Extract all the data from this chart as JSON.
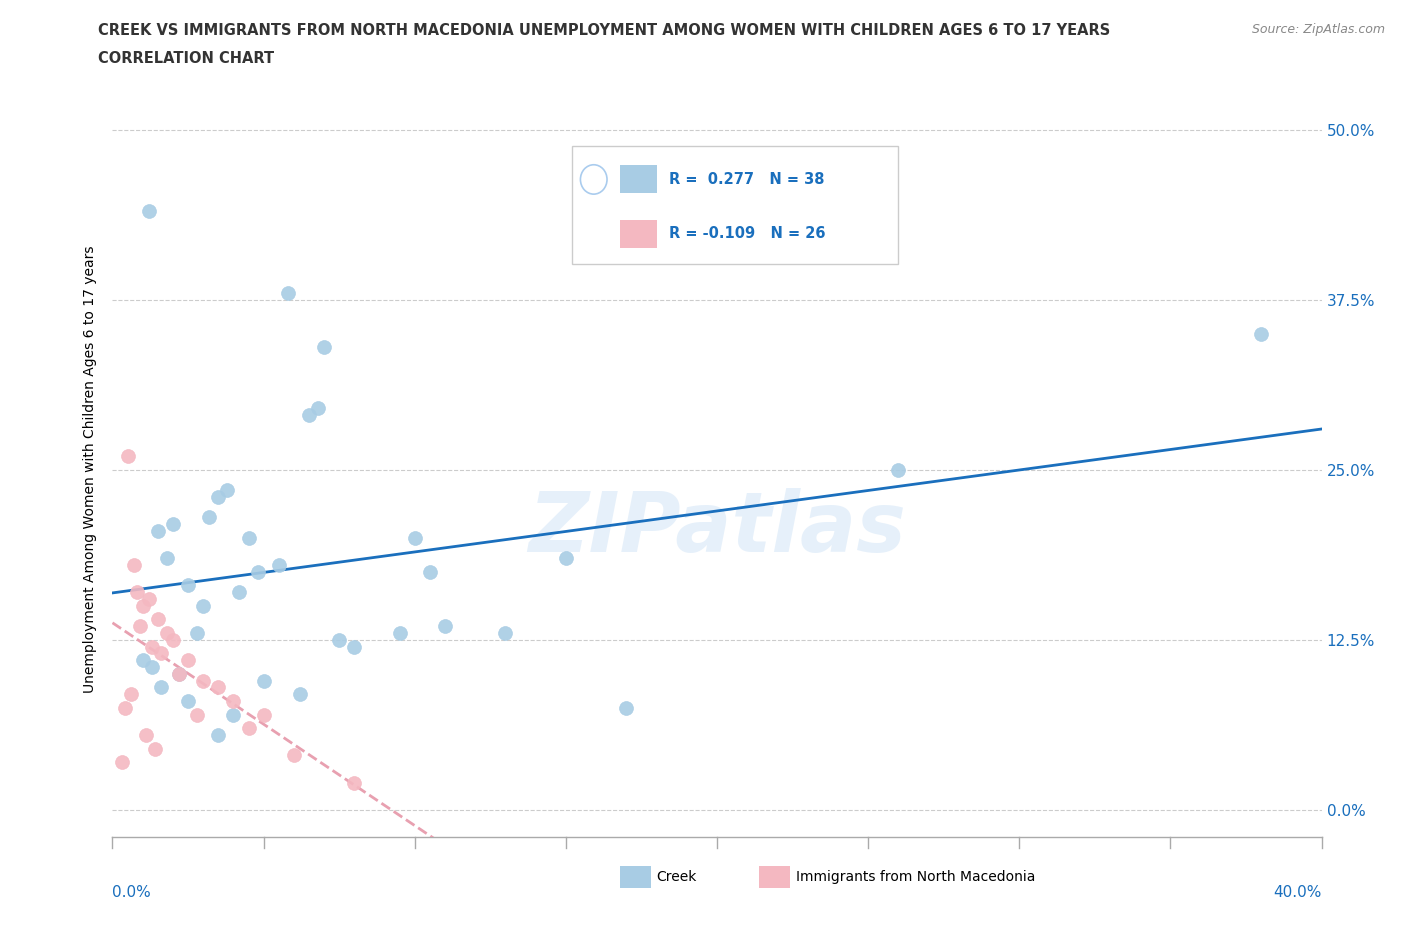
{
  "title_line1": "CREEK VS IMMIGRANTS FROM NORTH MACEDONIA UNEMPLOYMENT AMONG WOMEN WITH CHILDREN AGES 6 TO 17 YEARS",
  "title_line2": "CORRELATION CHART",
  "source": "Source: ZipAtlas.com",
  "ylabel": "Unemployment Among Women with Children Ages 6 to 17 years",
  "ytick_values": [
    0.0,
    12.5,
    25.0,
    37.5,
    50.0
  ],
  "xrange": [
    0.0,
    40.0
  ],
  "yrange": [
    -2.0,
    52.0
  ],
  "creek_color": "#a8cce4",
  "immigrants_color": "#f4b8c1",
  "trend_creek_color": "#1a6fbd",
  "trend_immigrants_color": "#e8a0b0",
  "legend_r_creek": "0.277",
  "legend_n_creek": "38",
  "legend_r_immigrants": "-0.109",
  "legend_n_immigrants": "26",
  "watermark": "ZIPatlas",
  "creek_x": [
    1.2,
    5.8,
    7.0,
    6.8,
    6.5,
    3.5,
    3.8,
    3.2,
    2.0,
    1.5,
    1.8,
    2.5,
    4.5,
    4.8,
    5.5,
    10.0,
    10.5,
    11.0,
    9.5,
    15.0,
    13.0,
    17.0,
    26.0,
    38.0,
    2.8,
    3.0,
    4.2,
    1.0,
    1.3,
    1.6,
    2.2,
    7.5,
    8.0,
    6.2,
    5.0,
    4.0,
    3.5,
    2.5
  ],
  "creek_y": [
    44.0,
    38.0,
    34.0,
    29.5,
    29.0,
    23.0,
    23.5,
    21.5,
    21.0,
    20.5,
    18.5,
    16.5,
    20.0,
    17.5,
    18.0,
    20.0,
    17.5,
    13.5,
    13.0,
    18.5,
    13.0,
    7.5,
    25.0,
    35.0,
    13.0,
    15.0,
    16.0,
    11.0,
    10.5,
    9.0,
    10.0,
    12.5,
    12.0,
    8.5,
    9.5,
    7.0,
    5.5,
    8.0
  ],
  "immigrants_x": [
    0.5,
    0.7,
    0.8,
    1.0,
    1.2,
    1.5,
    0.9,
    1.8,
    2.0,
    2.5,
    3.0,
    4.0,
    5.0,
    6.0,
    8.0,
    1.3,
    1.6,
    2.2,
    3.5,
    0.6,
    0.4,
    2.8,
    4.5,
    1.1,
    1.4,
    0.3
  ],
  "immigrants_y": [
    26.0,
    18.0,
    16.0,
    15.0,
    15.5,
    14.0,
    13.5,
    13.0,
    12.5,
    11.0,
    9.5,
    8.0,
    7.0,
    4.0,
    2.0,
    12.0,
    11.5,
    10.0,
    9.0,
    8.5,
    7.5,
    7.0,
    6.0,
    5.5,
    4.5,
    3.5
  ]
}
